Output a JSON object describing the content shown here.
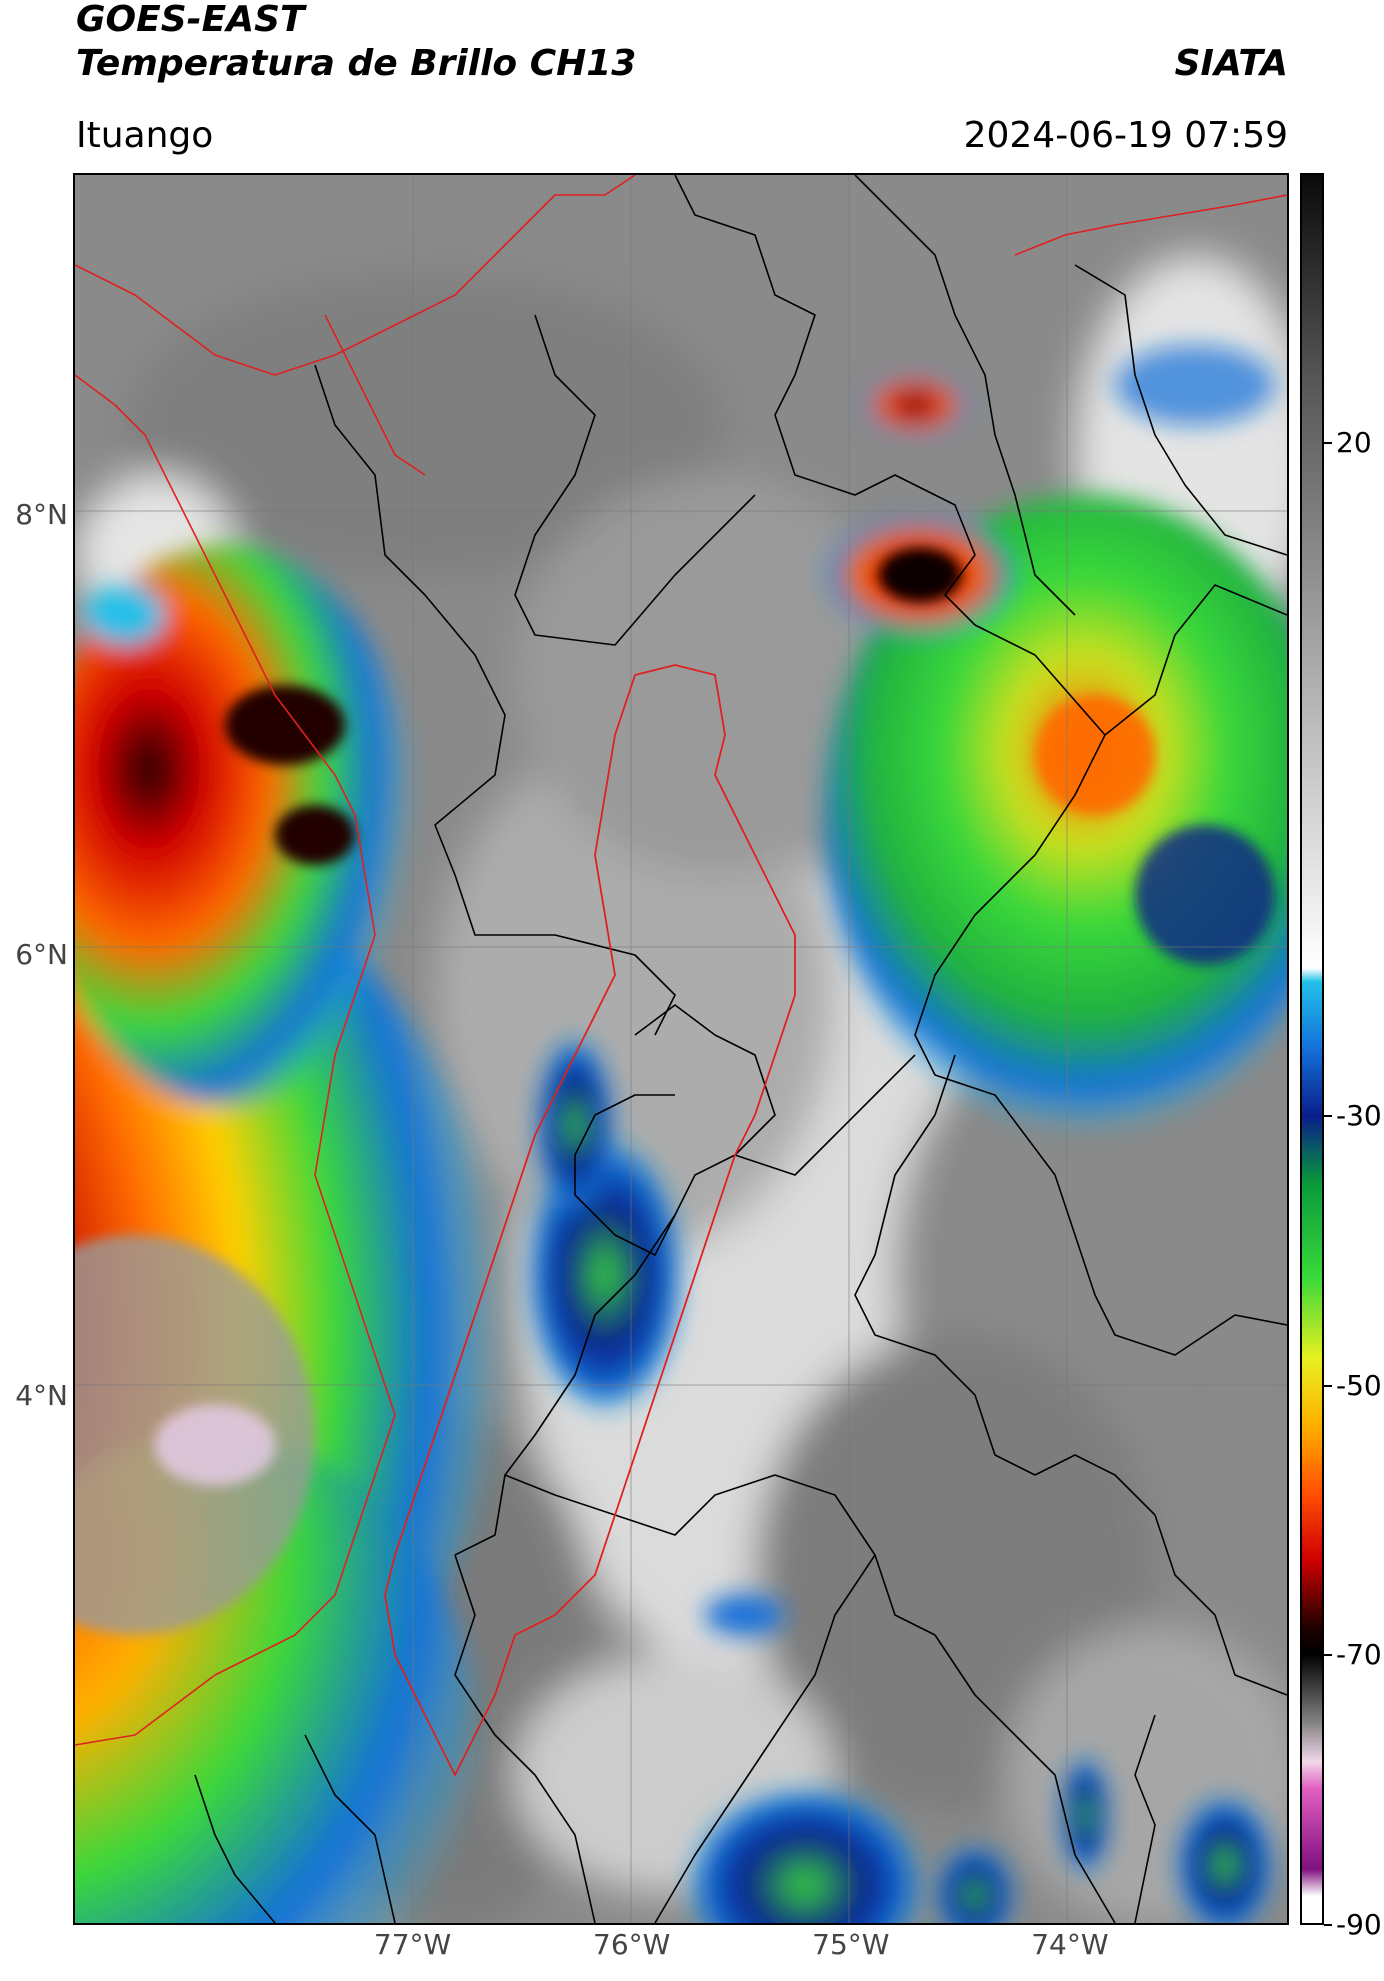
{
  "header": {
    "title_line1": "GOES-EAST",
    "title_line2": "Temperatura de Brillo CH13",
    "org": "SIATA",
    "region": "Ituango",
    "timestamp": "2024-06-19 07:59"
  },
  "map": {
    "latitude_labels": [
      {
        "label": "8°N",
        "value": 8
      },
      {
        "label": "6°N",
        "value": 6
      },
      {
        "label": "4°N",
        "value": 4
      }
    ],
    "longitude_labels": [
      {
        "label": "77°W",
        "value": -77
      },
      {
        "label": "76°W",
        "value": -76
      },
      {
        "label": "75°W",
        "value": -75
      },
      {
        "label": "74°W",
        "value": -74
      }
    ],
    "colors": {
      "boundary_lines": "#000000",
      "basin_outline": "#e02020",
      "coastline": "#e02020"
    }
  },
  "colorbar": {
    "range": [
      -90,
      40
    ],
    "ticks": [
      {
        "label": "20",
        "value": 20
      },
      {
        "label": "-30",
        "value": -30
      },
      {
        "label": "-50",
        "value": -50
      },
      {
        "label": "-70",
        "value": -70
      },
      {
        "label": "-90",
        "value": -90
      }
    ],
    "stops": [
      {
        "value": 40,
        "color": "#0a0a0a"
      },
      {
        "value": 25,
        "color": "#555555"
      },
      {
        "value": 0,
        "color": "#b8b8b8"
      },
      {
        "value": -19,
        "color": "#ffffff"
      },
      {
        "value": -20,
        "color": "#24c0e8"
      },
      {
        "value": -25,
        "color": "#1470d8"
      },
      {
        "value": -30,
        "color": "#0a1e8a"
      },
      {
        "value": -35,
        "color": "#0a9a3a"
      },
      {
        "value": -42,
        "color": "#3ad83a"
      },
      {
        "value": -48,
        "color": "#e8f020"
      },
      {
        "value": -53,
        "color": "#ffb000"
      },
      {
        "value": -58,
        "color": "#ff5000"
      },
      {
        "value": -63,
        "color": "#d00000"
      },
      {
        "value": -68,
        "color": "#200000"
      },
      {
        "value": -70,
        "color": "#000000"
      },
      {
        "value": -75,
        "color": "#808080"
      },
      {
        "value": -78,
        "color": "#f0d8e8"
      },
      {
        "value": -80,
        "color": "#e060c0"
      },
      {
        "value": -86,
        "color": "#801080"
      },
      {
        "value": -88,
        "color": "#ffffff"
      },
      {
        "value": -90,
        "color": "#ffffff"
      }
    ]
  }
}
